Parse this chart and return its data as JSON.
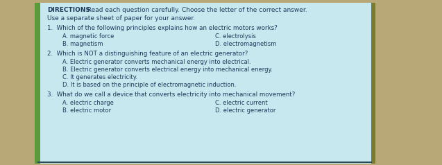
{
  "bg_color": "#c8e8f0",
  "outer_bg": "#b8a878",
  "border_color": "#2a5a6a",
  "text_color": "#1a3a5a",
  "figsize": [
    6.37,
    2.38
  ],
  "dpi": 100,
  "directions_bold": "DIRECTIONS",
  "directions_colon": ": Read each question carefully. Choose the letter of the correct answer.",
  "directions_line2": "Use a separate sheet of paper for your answer.",
  "q1": "1.  Which of the following principles explains how an electric motors works?",
  "q1_A": "A. magnetic force",
  "q1_C": "C. electrolysis",
  "q1_B": "B. magnetism",
  "q1_D": "D. electromagnetism",
  "q2": "2.  Which is NOT a distinguishing feature of an electric generator?",
  "q2_A": "A. Electric generator converts mechanical energy into electrical.",
  "q2_B": "B. Electric generator converts electrical energy into mechanical energy.",
  "q2_C": "C. It generates electricity.",
  "q2_D": "D. It is based on the principle of electromagnetic induction.",
  "q3": "3.  What do we call a device that converts electricity into mechanical movement?",
  "q3_A": "A. electric charge",
  "q3_C": "C. electric current",
  "q3_B": "B. electric motor",
  "q3_D": "D. electric generator",
  "left_bar_color": "#5a9a3a",
  "right_bar_color": "#7a7a30",
  "font_size_dir": 6.5,
  "font_size_q": 6.3,
  "font_size_ans": 6.0
}
